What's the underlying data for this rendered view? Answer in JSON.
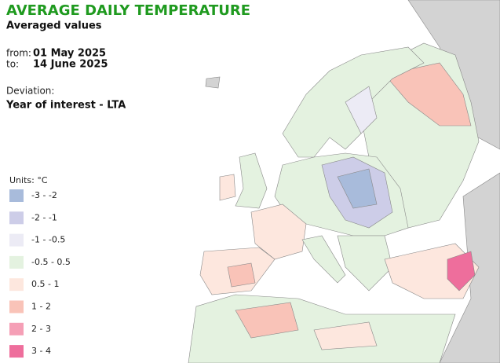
{
  "title": "AVERAGE DAILY TEMPERATURE",
  "subtitle": "Averaged values",
  "period": {
    "from_label": "from:",
    "from": "01 May 2025",
    "to_label": "to:",
    "to": "14 June 2025"
  },
  "deviation_label": "Deviation:",
  "deviation": "Year of interest - LTA",
  "legend": {
    "title": "Units: °C",
    "items": [
      {
        "label": "-3 - -2",
        "color": "#a8bbdb"
      },
      {
        "label": "-2 - -1",
        "color": "#cdcde8"
      },
      {
        "label": "-1 - -0.5",
        "color": "#ecebf5"
      },
      {
        "label": "-0.5 - 0.5",
        "color": "#e4f2e0"
      },
      {
        "label": "0.5 - 1",
        "color": "#fde7de"
      },
      {
        "label": "1 - 2",
        "color": "#f9c3b8"
      },
      {
        "label": "2 - 3",
        "color": "#f59fb6"
      },
      {
        "label": "3 - 4",
        "color": "#ee6e9c"
      }
    ]
  }
}
